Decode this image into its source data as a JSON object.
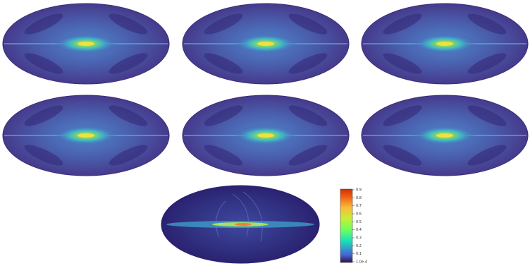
{
  "chart_data": {
    "type": "colorbar",
    "zlim": [
      0.0001,
      0.9
    ],
    "zticks": [
      {
        "value": 0.0001,
        "label": "1.0e-4"
      },
      0.1,
      0.2,
      0.3,
      0.4,
      0.5,
      0.6,
      0.7,
      0.8,
      0.9
    ]
  }
}
